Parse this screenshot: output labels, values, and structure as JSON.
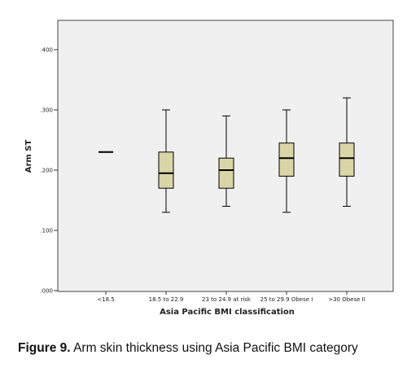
{
  "chart_data": {
    "type": "boxplot",
    "xlabel": "Asia Pacific BMI classification",
    "ylabel": "Arm ST",
    "ylim": [
      0.0,
      0.46
    ],
    "yticks": [
      0.0,
      0.1,
      0.2,
      0.3,
      0.4
    ],
    "ytick_labels": [
      ".000",
      ".100",
      ".200",
      ".300",
      ".400"
    ],
    "grid": false,
    "plot_background": "#f0f0f0",
    "box_color": "#d9d5a7",
    "categories": [
      "<18.5",
      "18.5 to 22.9",
      "23 to 24.9 at risk",
      "25 to 29.9 Obese I",
      ">30 Obese II"
    ],
    "boxes": [
      {
        "min": 0.23,
        "q1": 0.23,
        "median": 0.23,
        "q3": 0.23,
        "max": 0.23
      },
      {
        "min": 0.13,
        "q1": 0.17,
        "median": 0.195,
        "q3": 0.23,
        "max": 0.3
      },
      {
        "min": 0.14,
        "q1": 0.17,
        "median": 0.2,
        "q3": 0.22,
        "max": 0.29
      },
      {
        "min": 0.13,
        "q1": 0.19,
        "median": 0.22,
        "q3": 0.245,
        "max": 0.3
      },
      {
        "min": 0.14,
        "q1": 0.19,
        "median": 0.22,
        "q3": 0.245,
        "max": 0.32
      }
    ]
  },
  "caption": {
    "label": "Figure 9.",
    "text": "Arm skin thickness using Asia Pacific BMI category"
  }
}
